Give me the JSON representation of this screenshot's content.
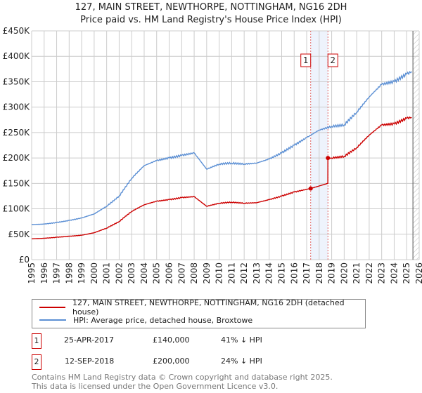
{
  "header": {
    "title": "127, MAIN STREET, NEWTHORPE, NOTTINGHAM, NG16 2DH",
    "subtitle": "Price paid vs. HM Land Registry's House Price Index (HPI)"
  },
  "chart_data": {
    "type": "line",
    "title": "127, MAIN STREET, NEWTHORPE, NOTTINGHAM, NG16 2DH",
    "xlim": [
      1995,
      2026
    ],
    "ylim": [
      0,
      450000
    ],
    "x_ticks": [
      "1995",
      "1996",
      "1997",
      "1998",
      "1999",
      "2000",
      "2001",
      "2002",
      "2003",
      "2004",
      "2005",
      "2006",
      "2007",
      "2008",
      "2009",
      "2010",
      "2011",
      "2012",
      "2013",
      "2014",
      "2015",
      "2016",
      "2017",
      "2018",
      "2019",
      "2020",
      "2021",
      "2022",
      "2023",
      "2024",
      "2025",
      "2026"
    ],
    "y_ticks": [
      {
        "v": 0,
        "l": "£0"
      },
      {
        "v": 50000,
        "l": "£50K"
      },
      {
        "v": 100000,
        "l": "£100K"
      },
      {
        "v": 150000,
        "l": "£150K"
      },
      {
        "v": 200000,
        "l": "£200K"
      },
      {
        "v": 250000,
        "l": "£250K"
      },
      {
        "v": 300000,
        "l": "£300K"
      },
      {
        "v": 350000,
        "l": "£350K"
      },
      {
        "v": 400000,
        "l": "£400K"
      },
      {
        "v": 450000,
        "l": "£450K"
      }
    ],
    "series": [
      {
        "name": "127, MAIN STREET, NEWTHORPE, NOTTINGHAM, NG16 2DH (detached house)",
        "color": "#cc0000",
        "x": [
          1995,
          1996,
          1997,
          1998,
          1999,
          2000,
          2001,
          2002,
          2003,
          2004,
          2005,
          2006,
          2007,
          2008,
          2009,
          2010,
          2011,
          2012,
          2013,
          2014,
          2015,
          2016,
          2017.32,
          2018.69,
          2018.7,
          2019,
          2020,
          2021,
          2022,
          2023,
          2024,
          2025,
          2025.4
        ],
        "y": [
          41000,
          42000,
          44000,
          46000,
          48000,
          53000,
          62000,
          75000,
          95000,
          108000,
          115000,
          118000,
          122000,
          124000,
          105000,
          111000,
          113000,
          111000,
          112000,
          118000,
          125000,
          133000,
          140000,
          150000,
          200000,
          200000,
          203000,
          220000,
          245000,
          265000,
          267000,
          278000,
          280000
        ]
      },
      {
        "name": "HPI: Average price, detached house, Broxtowe",
        "color": "#5b8fd4",
        "x": [
          1995,
          1996,
          1997,
          1998,
          1999,
          2000,
          2001,
          2002,
          2003,
          2004,
          2005,
          2006,
          2007,
          2008,
          2009,
          2010,
          2011,
          2012,
          2013,
          2014,
          2015,
          2016,
          2017,
          2018,
          2019,
          2020,
          2021,
          2022,
          2023,
          2024,
          2025,
          2025.4
        ],
        "y": [
          69000,
          70000,
          73000,
          77000,
          82000,
          90000,
          105000,
          125000,
          160000,
          185000,
          195000,
          200000,
          205000,
          210000,
          178000,
          188000,
          190000,
          188000,
          190000,
          198000,
          210000,
          225000,
          240000,
          255000,
          262000,
          265000,
          290000,
          320000,
          345000,
          350000,
          365000,
          370000
        ]
      }
    ],
    "annotations": [
      {
        "label": "1",
        "x": 2017.32
      },
      {
        "label": "2",
        "x": 2018.7
      }
    ],
    "forecast_start": 2025.5
  },
  "legend": {
    "items": [
      {
        "label": "127, MAIN STREET, NEWTHORPE, NOTTINGHAM, NG16 2DH (detached house)",
        "color": "#cc0000"
      },
      {
        "label": "HPI: Average price, detached house, Broxtowe",
        "color": "#5b8fd4"
      }
    ]
  },
  "transactions": [
    {
      "num": "1",
      "date": "25-APR-2017",
      "price": "£140,000",
      "hpi": "41% ↓ HPI"
    },
    {
      "num": "2",
      "date": "12-SEP-2018",
      "price": "£200,000",
      "hpi": "24% ↓ HPI"
    }
  ],
  "footer": {
    "line1": "Contains HM Land Registry data © Crown copyright and database right 2025.",
    "line2": "This data is licensed under the Open Government Licence v3.0."
  }
}
